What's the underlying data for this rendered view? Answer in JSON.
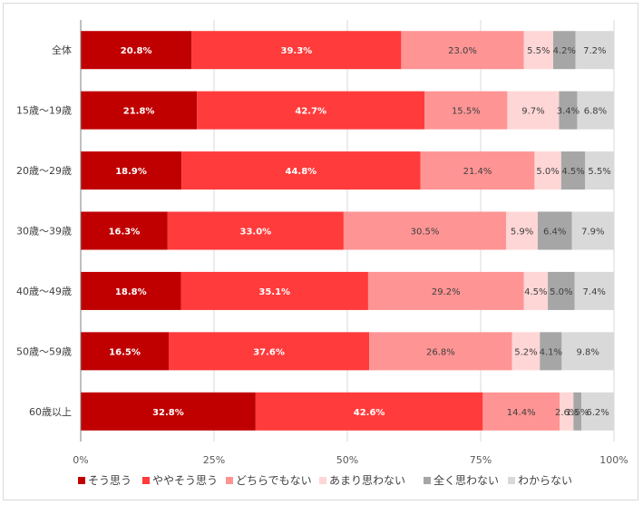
{
  "chart_data": {
    "type": "bar",
    "orientation": "horizontal",
    "stacked": true,
    "categories": [
      "全体",
      "15歳～19歳",
      "20歳～29歳",
      "30歳～39歳",
      "40歳～49歳",
      "50歳～59歳",
      "60歳以上"
    ],
    "series": [
      {
        "name": "そう思う",
        "color": "#c00000",
        "values": [
          20.8,
          21.8,
          18.9,
          16.3,
          18.8,
          16.5,
          32.8
        ]
      },
      {
        "name": "ややそう思う",
        "color": "#ff3b3b",
        "values": [
          39.3,
          42.7,
          44.8,
          33.0,
          35.1,
          37.6,
          42.6
        ]
      },
      {
        "name": "どちらでもない",
        "color": "#ff9494",
        "values": [
          23.0,
          15.5,
          21.4,
          30.5,
          29.2,
          26.8,
          14.4
        ]
      },
      {
        "name": "あまり思わない",
        "color": "#ffd6d6",
        "values": [
          5.5,
          9.7,
          5.0,
          5.9,
          4.5,
          5.2,
          2.6
        ]
      },
      {
        "name": "全く思わない",
        "color": "#a6a6a6",
        "values": [
          4.2,
          3.4,
          4.5,
          6.4,
          5.0,
          4.1,
          1.5
        ]
      },
      {
        "name": "わからない",
        "color": "#d9d9d9",
        "values": [
          7.2,
          6.8,
          5.5,
          7.9,
          7.4,
          9.8,
          6.2
        ]
      }
    ],
    "data_labels": [
      [
        "20.8%",
        "39.3%",
        "23.0%",
        "5.5%",
        "4.2%",
        "7.2%"
      ],
      [
        "21.8%",
        "42.7%",
        "15.5%",
        "9.7%",
        "3.4%",
        "6.8%"
      ],
      [
        "18.9%",
        "44.8%",
        "21.4%",
        "5.0%",
        "4.5%",
        "5.5%"
      ],
      [
        "16.3%",
        "33.0%",
        "30.5%",
        "5.9%",
        "6.4%",
        "7.9%"
      ],
      [
        "18.8%",
        "35.1%",
        "29.2%",
        "4.5%",
        "5.0%",
        "7.4%"
      ],
      [
        "16.5%",
        "37.6%",
        "26.8%",
        "5.2%",
        "4.1%",
        "9.8%"
      ],
      [
        "32.8%",
        "42.6%",
        "14.4%",
        "2.6%",
        "1.5%",
        "6.2%"
      ]
    ],
    "xlim": [
      0,
      100
    ],
    "xticks": [
      "0%",
      "25%",
      "50%",
      "75%",
      "100%"
    ],
    "xtick_values": [
      0,
      25,
      50,
      75,
      100
    ],
    "grid": true,
    "legend_position": "bottom",
    "label_colors": {
      "dark": "#ffffff",
      "light": "#404040"
    },
    "axis_color": "#7f7f7f",
    "grid_color": "#d9d9d9"
  }
}
